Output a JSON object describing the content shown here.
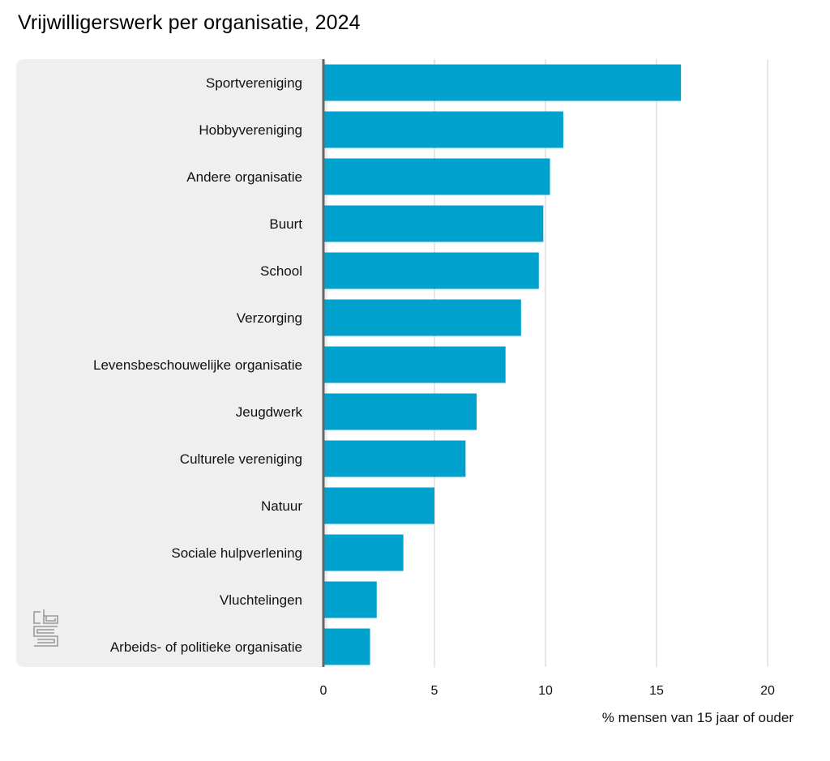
{
  "chart_data": {
    "type": "bar",
    "orientation": "horizontal",
    "title": "Vrijwilligerswerk per organisatie, 2024",
    "xlabel": "% mensen van 15 jaar of ouder",
    "ylabel": "",
    "xlim": [
      0,
      20
    ],
    "xticks": [
      0,
      5,
      10,
      15,
      20
    ],
    "grid": true,
    "categories": [
      "Sportvereniging",
      "Hobbyvereniging",
      "Andere organisatie",
      "Buurt",
      "School",
      "Verzorging",
      "Levensbeschouwelijke organisatie",
      "Jeugdwerk",
      "Culturele vereniging",
      "Natuur",
      "Sociale hulpverlening",
      "Vluchtelingen",
      "Arbeids- of politieke organisatie"
    ],
    "values": [
      16.1,
      10.8,
      10.2,
      9.9,
      9.7,
      8.9,
      8.2,
      6.9,
      6.4,
      5.0,
      3.6,
      2.4,
      2.1
    ],
    "colors": {
      "bar": "#00a1cd",
      "label_panel": "#efefef",
      "grid": "#cccccc",
      "axis": "#666666",
      "logo": "#9a9a9a"
    }
  },
  "logo": {
    "icon": "cbs-logo-icon",
    "text": "cbs"
  }
}
